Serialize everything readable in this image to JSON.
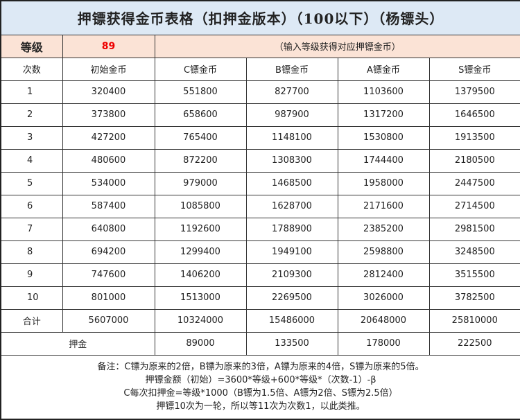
{
  "title": "押镖获得金币表格（扣押金版本）（100以下）（杨镖头）",
  "level": {
    "label": "等级",
    "value": "89",
    "hint": "（输入等级获得对应押镖金币）"
  },
  "headers": [
    "次数",
    "初始金币",
    "C镖金币",
    "B镖金币",
    "A镖金币",
    "S镖金币"
  ],
  "rows": [
    [
      "1",
      "320400",
      "551800",
      "827700",
      "1103600",
      "1379500"
    ],
    [
      "2",
      "373800",
      "658600",
      "987900",
      "1317200",
      "1646500"
    ],
    [
      "3",
      "427200",
      "765400",
      "1148100",
      "1530800",
      "1913500"
    ],
    [
      "4",
      "480600",
      "872200",
      "1308300",
      "1744400",
      "2180500"
    ],
    [
      "5",
      "534000",
      "979000",
      "1468500",
      "1958000",
      "2447500"
    ],
    [
      "6",
      "587400",
      "1085800",
      "1628700",
      "2171600",
      "2714500"
    ],
    [
      "7",
      "640800",
      "1192600",
      "1788900",
      "2385200",
      "2981500"
    ],
    [
      "8",
      "694200",
      "1299400",
      "1949100",
      "2598800",
      "3248500"
    ],
    [
      "9",
      "747600",
      "1406200",
      "2109300",
      "2812400",
      "3515500"
    ],
    [
      "10",
      "801000",
      "1513000",
      "2269500",
      "3026000",
      "3782500"
    ]
  ],
  "total": [
    "合计",
    "5607000",
    "10324000",
    "15486000",
    "20648000",
    "25810000"
  ],
  "deposit": [
    "押金",
    "89000",
    "133500",
    "178000",
    "222500"
  ],
  "notes": [
    "备注：C镖为原来的2倍，B镖为原来的3倍，A镖为原来的4倍，S镖为原来的5倍。",
    "押镖金额（初始）=3600*等级+600*等级*（次数-1）-β",
    "C每次扣押金=等级*1000（B镖为1.5倍、A镖为2倍、S镖为2.5倍）",
    "押镖10次为一轮，所以等11次为次数1，以此类推。"
  ]
}
